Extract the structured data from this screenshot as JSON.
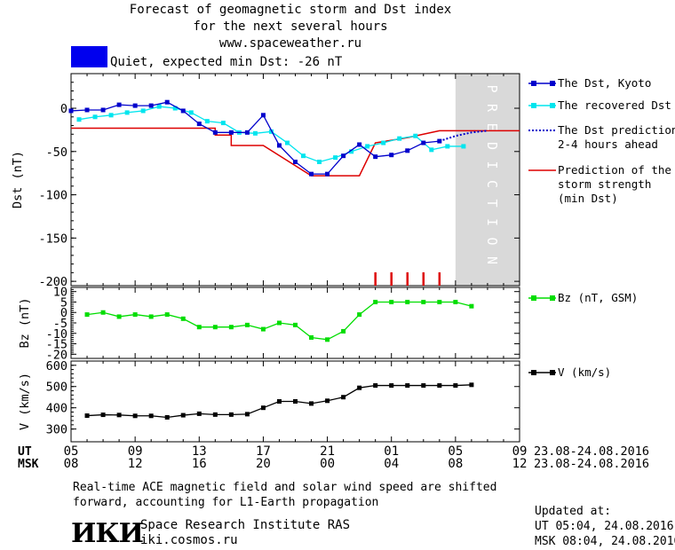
{
  "header": {
    "title_line1": "Forecast of geomagnetic storm and Dst index",
    "title_line2": "for the next several hours",
    "title_line3": "www.spaceweather.ru"
  },
  "status": {
    "label": "Quiet, expected min Dst: -26 nT",
    "color": "#0000ee"
  },
  "legend": {
    "dst_kyoto": "The Dst, Kyoto",
    "dst_recovered": "The recovered Dst",
    "dst_prediction_1": "The Dst prediction",
    "dst_prediction_2": "2-4 hours ahead",
    "storm_1": "Prediction of the",
    "storm_2": "storm strength",
    "storm_3": "(min Dst)",
    "bz": "Bz (nT, GSM)",
    "v": "V (km/s)"
  },
  "colors": {
    "dst_kyoto": "#0000cc",
    "dst_recovered": "#00e5ee",
    "dst_prediction": "#0000cc",
    "storm": "#dd0000",
    "bz": "#00dd00",
    "v": "#000000",
    "prediction_band": "#d9d9d9",
    "ticks": "#dd0000"
  },
  "time_axis": {
    "ut_label": "UT",
    "msk_label": "MSK",
    "ut_ticks": [
      "05",
      "09",
      "13",
      "17",
      "21",
      "01",
      "05",
      "09"
    ],
    "msk_ticks": [
      "08",
      "12",
      "16",
      "20",
      "00",
      "04",
      "08",
      "12"
    ],
    "ut_date": "23.08-24.08.2016",
    "msk_date": "23.08-24.08.2016"
  },
  "footer": {
    "note_line1": "Real-time ACE magnetic field and solar wind speed are shifted",
    "note_line2": "forward, accounting for L1-Earth propagation",
    "institute": "Space Research Institute RAS",
    "site": "iki.cosmos.ru",
    "logo": "ИКИ",
    "updated_label": "Updated at:",
    "updated_ut": "UT  05:04, 24.08.2016",
    "updated_msk": "MSK 08:04, 24.08.2016"
  },
  "chart_data": [
    {
      "type": "line",
      "ylabel": "Dst (nT)",
      "x_unit": "hours since 05 UT 23.08.2016",
      "xlim": [
        0,
        28
      ],
      "ylim": [
        -205,
        40
      ],
      "yticks": [
        0,
        -50,
        -100,
        -150,
        -200
      ],
      "prediction_region": [
        24,
        28
      ],
      "prediction_label": "PREDICTION",
      "series": [
        {
          "name": "The Dst, Kyoto",
          "x": [
            0,
            1,
            2,
            3,
            4,
            5,
            6,
            7,
            8,
            9,
            10,
            11,
            12,
            13,
            14,
            15,
            16,
            17,
            18,
            19,
            20,
            21,
            22,
            23
          ],
          "y": [
            -3,
            -2,
            -2,
            4,
            3,
            3,
            7,
            -3,
            -18,
            -28,
            -28,
            -28,
            -8,
            -43,
            -62,
            -76,
            -76,
            -55,
            -42,
            -56,
            -54,
            -49,
            -40,
            -38
          ]
        },
        {
          "name": "The recovered Dst",
          "x": [
            0.5,
            1.5,
            2.5,
            3.5,
            4.5,
            5.5,
            6.5,
            7.5,
            8.5,
            9.5,
            10.5,
            11.5,
            12.5,
            13.5,
            14.5,
            15.5,
            16.5,
            17.5,
            18.5,
            19.5,
            20.5,
            21.5,
            22.5,
            23.5,
            24.5
          ],
          "y": [
            -13,
            -10,
            -8,
            -5,
            -3,
            2,
            0,
            -5,
            -15,
            -17,
            -28,
            -29,
            -27,
            -40,
            -55,
            -62,
            -57,
            -50,
            -44,
            -40,
            -35,
            -32,
            -48,
            -44,
            -44
          ]
        },
        {
          "name": "The Dst prediction 2-4 hours ahead",
          "x": [
            23,
            24,
            25,
            26
          ],
          "y": [
            -38,
            -32,
            -28,
            -26
          ]
        },
        {
          "name": "Prediction of the storm strength (min Dst)",
          "x": [
            0,
            9,
            9,
            10,
            10,
            12,
            12,
            15,
            15,
            17,
            17,
            18,
            18,
            19,
            19,
            20,
            20,
            21,
            21,
            22,
            22,
            23,
            23,
            24,
            24,
            28
          ],
          "y": [
            -23,
            -23,
            -31,
            -31,
            -43,
            -43,
            -43,
            -78,
            -78,
            -78,
            -78,
            -78,
            -78,
            -40,
            -40,
            -37,
            -37,
            -34,
            -34,
            -30,
            -30,
            -26,
            -26,
            -26,
            -26,
            -26
          ]
        }
      ],
      "red_ticks_x": [
        19,
        20,
        21,
        22,
        23
      ]
    },
    {
      "type": "line",
      "ylabel": "Bz (nT)",
      "xlim": [
        0,
        28
      ],
      "ylim": [
        -22,
        12
      ],
      "yticks": [
        10,
        5,
        0,
        -5,
        -10,
        -15,
        -20
      ],
      "series": [
        {
          "name": "Bz (nT, GSM)",
          "x": [
            1,
            2,
            3,
            4,
            5,
            6,
            7,
            8,
            9,
            10,
            11,
            12,
            13,
            14,
            15,
            16,
            17,
            18,
            19,
            20,
            21,
            22,
            23,
            24,
            25
          ],
          "y": [
            -1,
            0,
            -2,
            -1,
            -2,
            -1,
            -3,
            -7,
            -7,
            -7,
            -6,
            -8,
            -5,
            -6,
            -12,
            -13,
            -9,
            -1,
            5,
            5,
            5,
            5,
            5,
            5,
            3
          ]
        }
      ]
    },
    {
      "type": "line",
      "ylabel": "V (km/s)",
      "xlim": [
        0,
        28
      ],
      "ylim": [
        240,
        620
      ],
      "yticks": [
        600,
        500,
        400,
        300
      ],
      "series": [
        {
          "name": "V (km/s)",
          "x": [
            1,
            2,
            3,
            4,
            5,
            6,
            7,
            8,
            9,
            10,
            11,
            12,
            13,
            14,
            15,
            16,
            17,
            18,
            19,
            20,
            21,
            22,
            23,
            24,
            25
          ],
          "y": [
            363,
            367,
            366,
            362,
            362,
            355,
            365,
            372,
            368,
            368,
            370,
            400,
            430,
            430,
            420,
            433,
            450,
            494,
            505,
            505,
            505,
            505,
            505,
            505,
            508
          ]
        }
      ]
    }
  ]
}
